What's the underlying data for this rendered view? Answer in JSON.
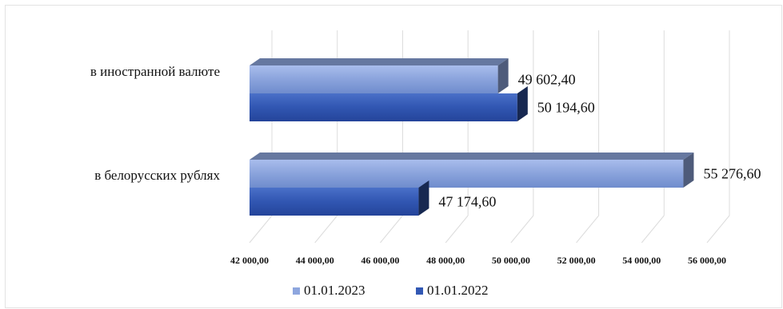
{
  "chart_data": {
    "type": "bar",
    "orientation": "horizontal",
    "style": "3d",
    "categories": [
      "в иностранной валюте",
      "в белорусских рублях"
    ],
    "series": [
      {
        "name": "01.01.2023",
        "values": [
          49602.4,
          55276.6
        ],
        "labels": [
          "49 602,40",
          "55 276,60"
        ],
        "color": "#8ea6de"
      },
      {
        "name": "01.01.2022",
        "values": [
          50194.6,
          47174.6
        ],
        "labels": [
          "50 194,60",
          "47 174,60"
        ],
        "color": "#3258b4"
      }
    ],
    "xlim": [
      42000,
      56000
    ],
    "ticks": [
      42000,
      44000,
      46000,
      48000,
      50000,
      52000,
      54000,
      56000
    ],
    "tick_labels": [
      "42 000,00",
      "44 000,00",
      "46 000,00",
      "48 000,00",
      "50 000,00",
      "52 000,00",
      "54 000,00",
      "56 000,00"
    ],
    "grid": true,
    "legend_position": "bottom"
  }
}
